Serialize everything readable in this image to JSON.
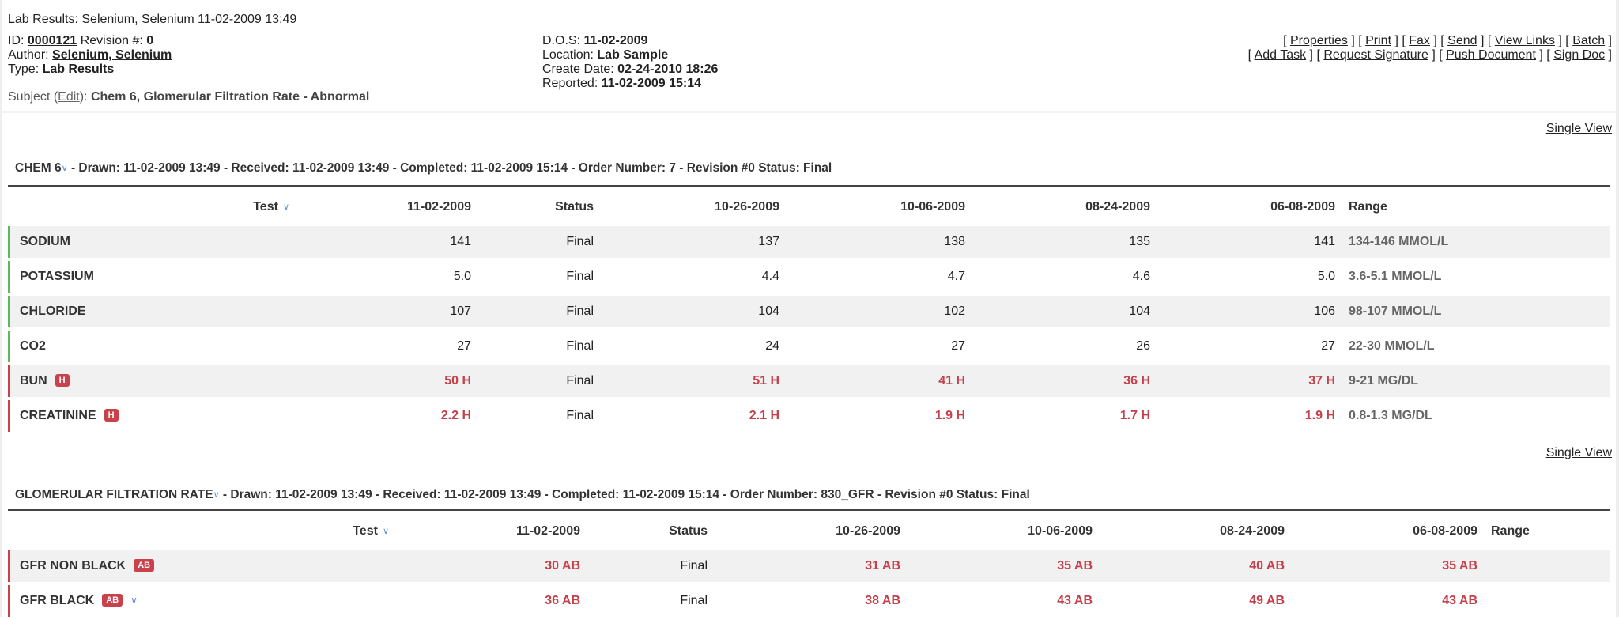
{
  "title": "Lab Results: Selenium, Selenium 11-02-2009 13:49",
  "meta": {
    "id_label": "ID:",
    "id": "0000121",
    "revision_label": "Revision #:",
    "revision": "0",
    "author_label": "Author:",
    "author": "Selenium, Selenium",
    "type_label": "Type:",
    "type": "Lab Results",
    "subject_label": "Subject (",
    "edit_label": "Edit",
    "subject_close": "):",
    "subject": "Chem 6, Glomerular Filtration Rate - Abnormal",
    "dos_label": "D.O.S:",
    "dos": "11-02-2009",
    "location_label": "Location:",
    "location": "Lab Sample",
    "create_label": "Create Date:",
    "create_date": "02-24-2010 18:26",
    "reported_label": "Reported:",
    "reported": "11-02-2009 15:14"
  },
  "actions_row1": [
    "Properties",
    "Print",
    "Fax",
    "Send",
    "View Links",
    "Batch"
  ],
  "actions_row2": [
    "Add Task",
    "Request Signature",
    "Push Document",
    "Sign Doc"
  ],
  "colors": {
    "normal": "#5cb85c",
    "abnormal": "#c9414b",
    "abnormal_text": "#c4404a"
  },
  "sections": [
    {
      "single_view": "Single View",
      "name": "CHEM 6",
      "details": " - Drawn: 11-02-2009 13:49 - Received: 11-02-2009 13:49 - Completed: 11-02-2009 15:14 - Order Number: 7 - Revision #0 Status: Final",
      "columns": [
        "Test",
        "11-02-2009",
        "Status",
        "10-26-2009",
        "10-06-2009",
        "08-24-2009",
        "06-08-2009",
        "Range"
      ],
      "rows": [
        {
          "test": "SODIUM",
          "flag": "",
          "abnormal": false,
          "values": [
            "141",
            "Final",
            "137",
            "138",
            "135",
            "141"
          ],
          "range": "134-146 MMOL/L"
        },
        {
          "test": "POTASSIUM",
          "flag": "",
          "abnormal": false,
          "values": [
            "5.0",
            "Final",
            "4.4",
            "4.7",
            "4.6",
            "5.0"
          ],
          "range": "3.6-5.1 MMOL/L"
        },
        {
          "test": "CHLORIDE",
          "flag": "",
          "abnormal": false,
          "values": [
            "107",
            "Final",
            "104",
            "102",
            "104",
            "106"
          ],
          "range": "98-107 MMOL/L"
        },
        {
          "test": "CO2",
          "flag": "",
          "abnormal": false,
          "values": [
            "27",
            "Final",
            "24",
            "27",
            "26",
            "27"
          ],
          "range": "22-30 MMOL/L"
        },
        {
          "test": "BUN",
          "flag": "H",
          "abnormal": true,
          "values": [
            "50 H",
            "Final",
            "51 H",
            "41 H",
            "36 H",
            "37 H"
          ],
          "range": "9-21 MG/DL"
        },
        {
          "test": "CREATININE",
          "flag": "H",
          "abnormal": true,
          "values": [
            "2.2 H",
            "Final",
            "2.1 H",
            "1.9 H",
            "1.7 H",
            "1.9 H"
          ],
          "range": "0.8-1.3 MG/DL"
        }
      ]
    },
    {
      "single_view": "Single View",
      "name": "GLOMERULAR FILTRATION RATE",
      "details": " - Drawn: 11-02-2009 13:49 - Received: 11-02-2009 13:49 - Completed: 11-02-2009 15:14 - Order Number: 830_GFR - Revision #0 Status: Final",
      "columns": [
        "Test",
        "11-02-2009",
        "Status",
        "10-26-2009",
        "10-06-2009",
        "08-24-2009",
        "06-08-2009",
        "Range"
      ],
      "rows": [
        {
          "test": "GFR NON BLACK",
          "flag": "AB",
          "abnormal": true,
          "values": [
            "30 AB",
            "Final",
            "31 AB",
            "35 AB",
            "40 AB",
            "35 AB"
          ],
          "range": ""
        },
        {
          "test": "GFR BLACK",
          "flag": "AB",
          "abnormal": true,
          "expand": true,
          "values": [
            "36 AB",
            "Final",
            "38 AB",
            "43 AB",
            "49 AB",
            "43 AB"
          ],
          "range": ""
        }
      ]
    }
  ]
}
